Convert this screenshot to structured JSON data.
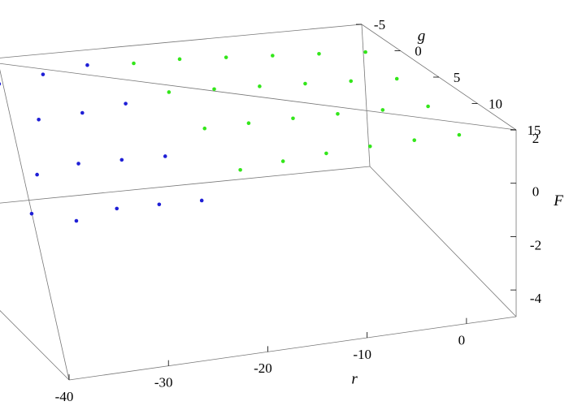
{
  "chart_data": {
    "type": "scatter3d",
    "xlabel": "r",
    "ylabel": "g",
    "zlabel": "F",
    "xlim": [
      -40,
      5
    ],
    "ylim": [
      -5,
      15
    ],
    "zlim": [
      -5,
      2
    ],
    "xticks": [
      -40,
      -30,
      -20,
      -10,
      0
    ],
    "yticks": [
      -5,
      0,
      5,
      10,
      15
    ],
    "zticks": [
      -4,
      -2,
      0,
      2
    ],
    "series": [
      {
        "color": "#1f1fd6",
        "x": [
          -38,
          -38,
          -38,
          -38,
          -34,
          -34,
          -34,
          -34,
          -30,
          -30,
          -30,
          -30,
          -26,
          -26,
          -26,
          -26,
          -22,
          -22,
          -22,
          -22
        ],
        "y": [
          0,
          4,
          8,
          12,
          0,
          4,
          8,
          12,
          0,
          4,
          8,
          12,
          0,
          4,
          8,
          12,
          0,
          4,
          8,
          12
        ],
        "z": [
          1.2,
          0.2,
          -0.8,
          -1.6,
          1.0,
          0.0,
          -1.0,
          -1.8,
          1.3,
          0.3,
          -0.7,
          -1.5,
          1.6,
          0.5,
          -0.6,
          -1.4,
          1.9,
          0.8,
          -0.5,
          -1.3
        ]
      },
      {
        "color": "#33e61a",
        "x": [
          -18,
          -18,
          -18,
          -18,
          -14,
          -14,
          -14,
          -14,
          -10,
          -10,
          -10,
          -10,
          -6,
          -6,
          -6,
          -6,
          -2,
          -2,
          -2,
          -2,
          2,
          2,
          2,
          2
        ],
        "y": [
          0,
          4,
          8,
          12,
          0,
          4,
          8,
          12,
          0,
          4,
          8,
          12,
          0,
          4,
          8,
          12,
          0,
          4,
          8,
          12,
          0,
          4,
          8,
          12
        ],
        "z": [
          1.9,
          1.2,
          0.4,
          -0.4,
          2.0,
          1.3,
          0.6,
          -0.1,
          2.0,
          1.4,
          0.8,
          0.2,
          2.0,
          1.5,
          1.0,
          0.5,
          2.0,
          1.6,
          1.2,
          0.8,
          2.0,
          1.7,
          1.4,
          1.1
        ]
      }
    ]
  }
}
